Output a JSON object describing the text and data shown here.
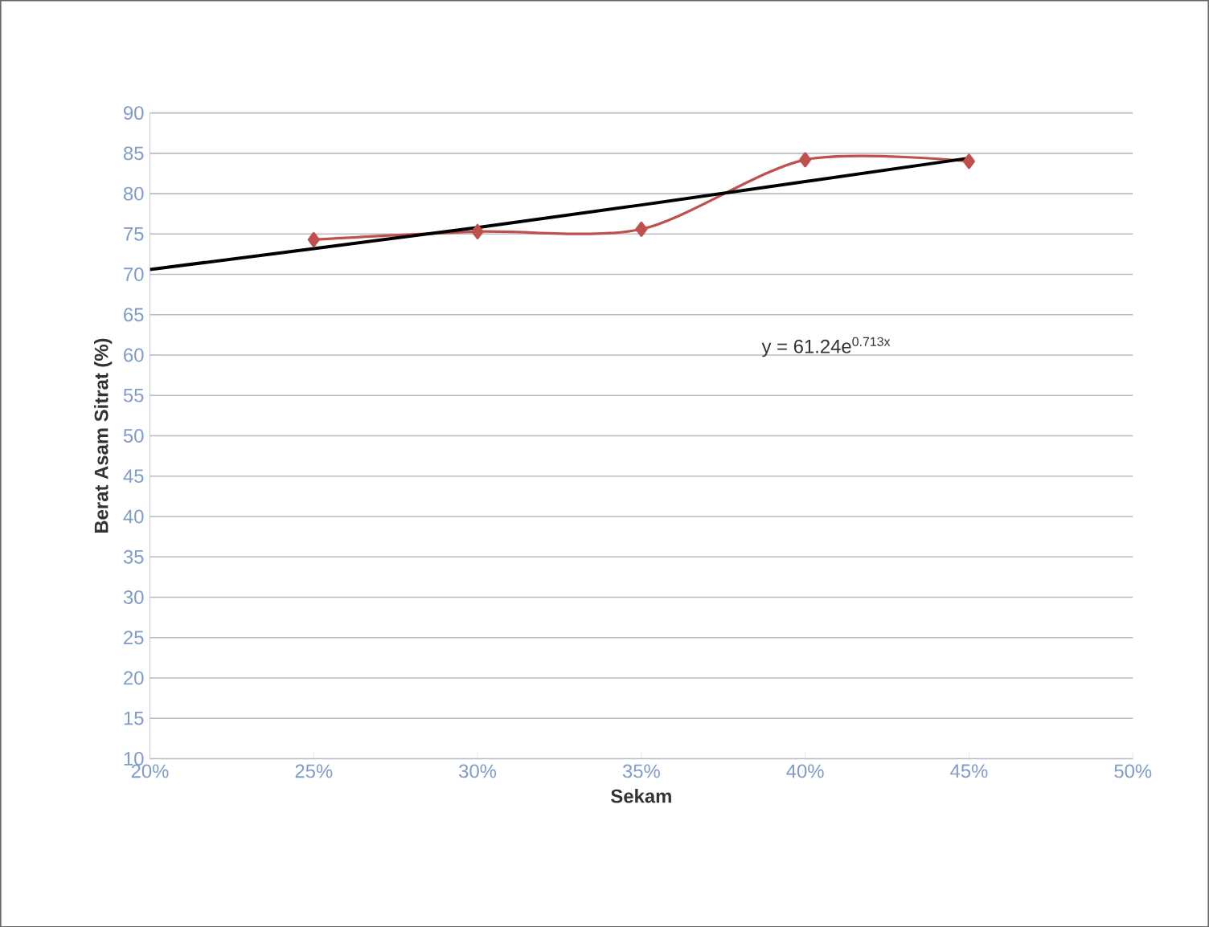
{
  "chart_data": {
    "type": "line",
    "xlabel": "Sekam",
    "ylabel": "Berat Asam Sitrat (%)",
    "xlim": [
      20,
      50
    ],
    "xticks": [
      {
        "value": 20,
        "label": "20%"
      },
      {
        "value": 25,
        "label": "25%"
      },
      {
        "value": 30,
        "label": "30%"
      },
      {
        "value": 35,
        "label": "35%"
      },
      {
        "value": 40,
        "label": "40%"
      },
      {
        "value": 45,
        "label": "45%"
      },
      {
        "value": 50,
        "label": "50%"
      }
    ],
    "ylim": [
      10,
      90
    ],
    "yticks": [
      10,
      15,
      20,
      25,
      30,
      35,
      40,
      45,
      50,
      55,
      60,
      65,
      70,
      75,
      80,
      85,
      90
    ],
    "grid": "y",
    "marker": "diamond",
    "line_style": "solid",
    "series": [
      {
        "color": "#c0504d",
        "x": [
          25,
          30,
          35,
          40,
          45
        ],
        "values": [
          74.3,
          75.3,
          75.6,
          84.2,
          84.0
        ]
      },
      {
        "color": "#000000",
        "marker": "none",
        "x": [
          20,
          25,
          30,
          35,
          40,
          45
        ],
        "values": [
          70.6,
          73.2,
          75.8,
          78.6,
          81.5,
          84.4
        ]
      }
    ],
    "annotations": [
      "y = 61.24e$^{0.713x}$"
    ]
  }
}
